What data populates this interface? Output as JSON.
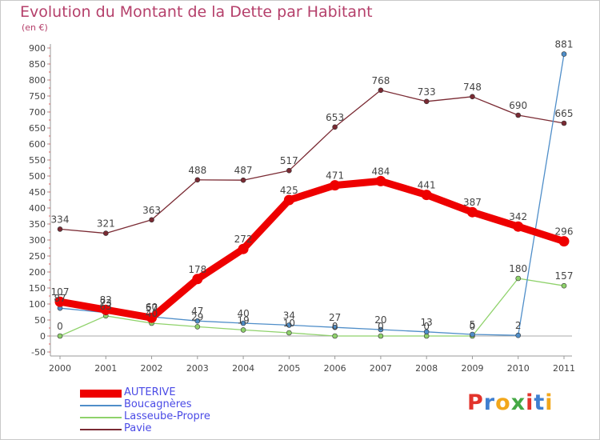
{
  "header": {
    "title": "Evolution du Montant de la Dette par Habitant",
    "unit": "(en €)"
  },
  "logo": {
    "letters": [
      "P",
      "r",
      "o",
      "x",
      "i",
      "t",
      "i"
    ],
    "colors": [
      "#e2342c",
      "#3f7fd0",
      "#f2a71b",
      "#45a845",
      "#e2342c",
      "#3f7fd0",
      "#f2a71b"
    ]
  },
  "chart_data": {
    "type": "line",
    "title": "Evolution du Montant de la Dette par Habitant",
    "ylabel": "(en €)",
    "xlabel": "",
    "x": [
      "2000",
      "2001",
      "2002",
      "2003",
      "2004",
      "2005",
      "2006",
      "2007",
      "2008",
      "2009",
      "2010",
      "2011"
    ],
    "ylim": [
      -50,
      900
    ],
    "yticks": [
      -50,
      0,
      50,
      100,
      150,
      200,
      250,
      300,
      350,
      400,
      450,
      500,
      550,
      600,
      650,
      700,
      750,
      800,
      850,
      900
    ],
    "grid": false,
    "legend": "bottom-left",
    "series": [
      {
        "name": "AUTERIVE",
        "color": "#ee0000",
        "values": [
          107,
          82,
          57,
          178,
          272,
          425,
          471,
          484,
          441,
          387,
          342,
          296
        ]
      },
      {
        "name": "Boucagnères",
        "color": "#4f8ec9",
        "values": [
          87,
          73,
          60,
          47,
          40,
          34,
          27,
          20,
          13,
          5,
          2,
          881
        ]
      },
      {
        "name": "Lasseube-Propre",
        "color": "#8fd26b",
        "values": [
          0,
          63,
          40,
          29,
          19,
          10,
          0,
          0,
          0,
          0,
          180,
          157
        ]
      },
      {
        "name": "Pavie",
        "color": "#7a2a33",
        "values": [
          334,
          321,
          363,
          488,
          487,
          517,
          653,
          768,
          733,
          748,
          690,
          665
        ]
      }
    ]
  }
}
